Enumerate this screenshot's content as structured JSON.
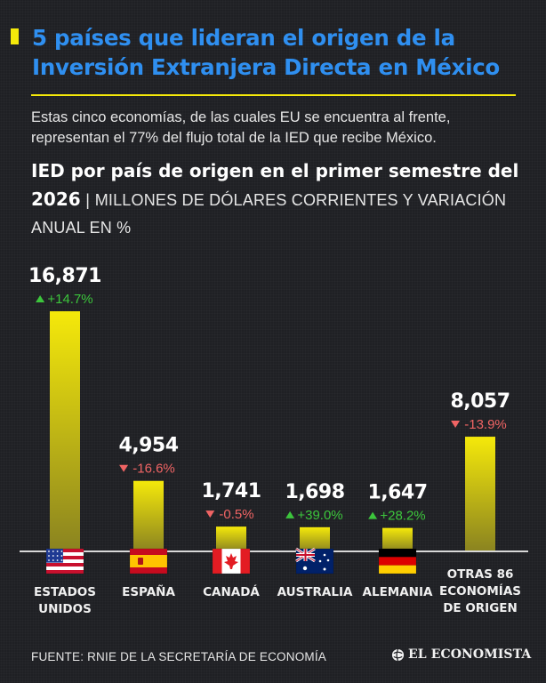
{
  "header": {
    "title": "5 países que lideran el origen de la Inversión Extranjera Directa en México",
    "subtitle": "Estas cinco economías, de las cuales EU se encuentra al frente, representan el 77% del flujo total de la IED que recibe México.",
    "heading_bold": "IED por país de origen en el primer semestre del 2026",
    "heading_unit": "MILLONES DE DÓLARES CORRIENTES Y VARIACIÓN ANUAL EN %",
    "separator": "|"
  },
  "chart_data": {
    "type": "bar",
    "categories": [
      "ESTADOS UNIDOS",
      "ESPAÑA",
      "CANADÁ",
      "AUSTRALIA",
      "ALEMANIA",
      "OTRAS 86 ECONOMÍAS DE ORIGEN"
    ],
    "values": [
      16871,
      4954,
      1741,
      1698,
      1647,
      8057
    ],
    "value_labels": [
      "16,871",
      "4,954",
      "1,741",
      "1,698",
      "1,647",
      "8,057"
    ],
    "changes": [
      "+14.7%",
      "-16.6%",
      "-0.5%",
      "+39.0%",
      "+28.2%",
      "-13.9%"
    ],
    "change_direction": [
      "up",
      "down",
      "down",
      "up",
      "up",
      "down"
    ],
    "flags": [
      "usa-flag",
      "spain-flag",
      "canada-flag",
      "australia-flag",
      "germany-flag",
      null
    ],
    "ylim": [
      0,
      16871
    ],
    "grid": false,
    "colors": {
      "bar": "#f5e90a",
      "up": "#3cc53c",
      "down": "#f06464",
      "axis": "#d8d8d8"
    }
  },
  "footer": {
    "source": "FUENTE: RNIE DE LA SECRETARÍA DE ECONOMÍA",
    "logo": "EL ECONOMISTA",
    "logo_icon": "globe-icon"
  }
}
